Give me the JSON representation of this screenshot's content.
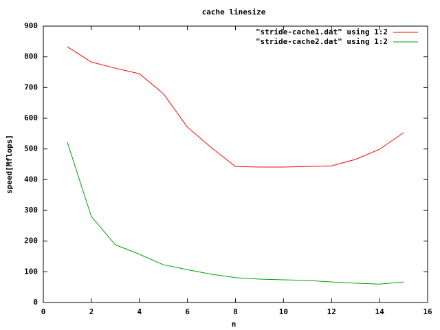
{
  "chart_data": {
    "type": "line",
    "title": "cache linesize",
    "x_label": "n",
    "y_label": "speed[Mflops]",
    "x": [
      1,
      2,
      3,
      4,
      5,
      6,
      7,
      8,
      9,
      10,
      11,
      12,
      13,
      14,
      15
    ],
    "series": [
      {
        "name": "\"stride-cache1.dat\" using 1:2",
        "color": "#ff0000",
        "values": [
          833,
          783,
          763,
          745,
          680,
          571,
          504,
          443,
          441,
          441,
          443,
          445,
          466,
          499,
          553
        ]
      },
      {
        "name": "\"stride-cache2.dat\" using 1:2",
        "color": "#00a000",
        "values": [
          522,
          280,
          188,
          157,
          123,
          107,
          92,
          81,
          76,
          74,
          72,
          67,
          63,
          60,
          67
        ]
      }
    ],
    "xlim": [
      0,
      16
    ],
    "xticks": [
      0,
      2,
      4,
      6,
      8,
      10,
      12,
      14,
      16
    ],
    "ylim": [
      0,
      900
    ],
    "yticks": [
      0,
      100,
      200,
      300,
      400,
      500,
      600,
      700,
      800,
      900
    ],
    "legend": "upper-right"
  }
}
